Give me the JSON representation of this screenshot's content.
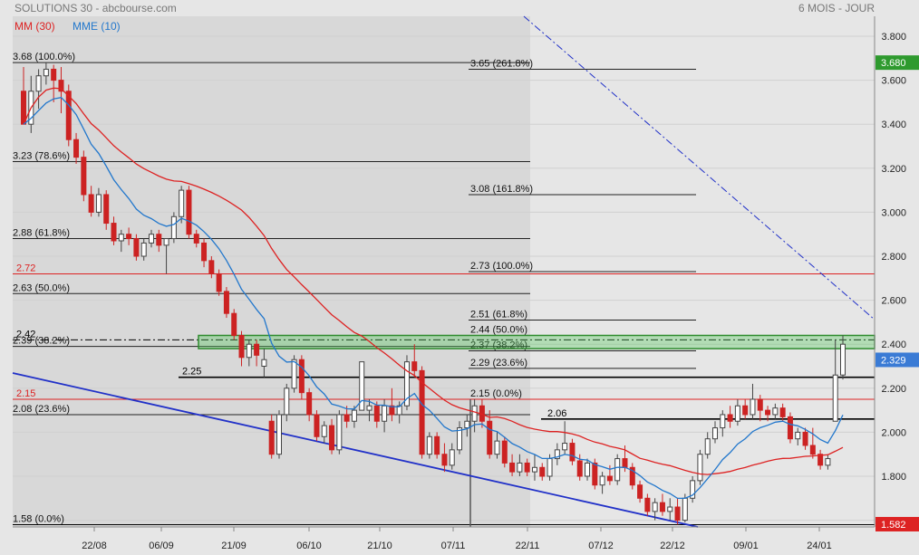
{
  "header": {
    "title": "SOLUTIONS 30 - abcbourse.com",
    "period": "6 MOIS - JOUR"
  },
  "legend": [
    {
      "label": "MM (30)",
      "color": "#dd2222"
    },
    {
      "label": "MME (10)",
      "color": "#2277cc"
    }
  ],
  "colors": {
    "up": "#ffffff",
    "down": "#cc2222",
    "highlight_up": "#2e7d32",
    "mm": "#dd2222",
    "mme": "#2277cc",
    "trend": "#2030c8"
  },
  "chart_data": {
    "type": "candlestick",
    "ylim": [
      1.55,
      3.9
    ],
    "y_ticks": [
      "3.800",
      "3.600",
      "3.400",
      "3.200",
      "3.000",
      "2.800",
      "2.600",
      "2.400",
      "2.200",
      "2.000",
      "1.800",
      "1.600"
    ],
    "x_ticks": [
      "22/08",
      "06/09",
      "21/09",
      "06/10",
      "21/10",
      "07/11",
      "22/11",
      "07/12",
      "22/12",
      "09/01",
      "24/01"
    ],
    "price_badges": [
      {
        "text": "3.680",
        "value": 3.68,
        "color": "#2e9a2e"
      },
      {
        "text": "2.329",
        "value": 2.329,
        "color": "#3a7bd5"
      },
      {
        "text": "1.582",
        "value": 1.582,
        "color": "#dd2222"
      }
    ],
    "fib_retracement": [
      {
        "label": "3.68  (100.0%)",
        "value": 3.68
      },
      {
        "label": "3.23  (78.6%)",
        "value": 3.23
      },
      {
        "label": "2.88  (61.8%)",
        "value": 2.88
      },
      {
        "label": "2.63  (50.0%)",
        "value": 2.63
      },
      {
        "label": "2.39  (38.2%)",
        "value": 2.39
      },
      {
        "label": "2.08  (23.6%)",
        "value": 2.08
      },
      {
        "label": "1.58  (0.0%)",
        "value": 1.58
      }
    ],
    "fib_extension": [
      {
        "label": "3.65  (261.8%)",
        "value": 3.65
      },
      {
        "label": "3.08  (161.8%)",
        "value": 3.08
      },
      {
        "label": "2.73  (100.0%)",
        "value": 2.73
      },
      {
        "label": "2.51  (61.8%)",
        "value": 2.51
      },
      {
        "label": "2.44  (50.0%)",
        "value": 2.44
      },
      {
        "label": "2.37  (38.2%)",
        "value": 2.37
      },
      {
        "label": "2.29  (23.6%)",
        "value": 2.29
      },
      {
        "label": "2.15  (0.0%)",
        "value": 2.15
      }
    ],
    "levels": [
      {
        "label": "2.72",
        "value": 2.72,
        "color": "#dd2222"
      },
      {
        "label": "2.42",
        "value": 2.42,
        "color": "#000000"
      },
      {
        "label": "2.25",
        "value": 2.25,
        "color": "#000000"
      },
      {
        "label": "2.15",
        "value": 2.15,
        "color": "#dd2222"
      },
      {
        "label": "2.06",
        "value": 2.06,
        "color": "#000000"
      },
      {
        "label": "1.58",
        "value": 1.58,
        "color": "#000000"
      }
    ],
    "zone": {
      "low": 2.38,
      "high": 2.44
    },
    "candles": [
      [
        3.55,
        3.66,
        3.4,
        3.4
      ],
      [
        3.4,
        3.62,
        3.36,
        3.55
      ],
      [
        3.55,
        3.65,
        3.47,
        3.62
      ],
      [
        3.62,
        3.68,
        3.58,
        3.65
      ],
      [
        3.65,
        3.67,
        3.5,
        3.6
      ],
      [
        3.6,
        3.66,
        3.45,
        3.55
      ],
      [
        3.55,
        3.58,
        3.3,
        3.33
      ],
      [
        3.33,
        3.36,
        3.22,
        3.25
      ],
      [
        3.25,
        3.28,
        3.05,
        3.08
      ],
      [
        3.08,
        3.12,
        2.98,
        3.0
      ],
      [
        3.0,
        3.11,
        2.98,
        3.08
      ],
      [
        3.08,
        3.1,
        2.92,
        2.95
      ],
      [
        2.95,
        2.98,
        2.85,
        2.87
      ],
      [
        2.87,
        2.92,
        2.82,
        2.9
      ],
      [
        2.9,
        2.93,
        2.85,
        2.88
      ],
      [
        2.88,
        2.9,
        2.78,
        2.8
      ],
      [
        2.8,
        2.88,
        2.78,
        2.86
      ],
      [
        2.86,
        2.92,
        2.84,
        2.9
      ],
      [
        2.9,
        2.92,
        2.82,
        2.85
      ],
      [
        2.85,
        2.88,
        2.72,
        2.88
      ],
      [
        2.88,
        3.0,
        2.86,
        2.98
      ],
      [
        2.98,
        3.12,
        2.95,
        3.1
      ],
      [
        3.1,
        3.12,
        2.88,
        2.9
      ],
      [
        2.9,
        2.92,
        2.84,
        2.86
      ],
      [
        2.86,
        2.88,
        2.75,
        2.78
      ],
      [
        2.78,
        2.8,
        2.7,
        2.72
      ],
      [
        2.72,
        2.74,
        2.62,
        2.64
      ],
      [
        2.64,
        2.66,
        2.52,
        2.54
      ],
      [
        2.54,
        2.56,
        2.42,
        2.44
      ],
      [
        2.44,
        2.46,
        2.3,
        2.34
      ],
      [
        2.34,
        2.42,
        2.3,
        2.4
      ],
      [
        2.4,
        2.42,
        2.3,
        2.35
      ],
      [
        2.3,
        2.38,
        2.25,
        2.33
      ],
      [
        2.05,
        2.08,
        1.88,
        1.9
      ],
      [
        1.9,
        2.1,
        1.88,
        2.08
      ],
      [
        2.08,
        2.22,
        2.05,
        2.2
      ],
      [
        2.2,
        2.35,
        2.18,
        2.33
      ],
      [
        2.33,
        2.35,
        2.15,
        2.18
      ],
      [
        2.18,
        2.2,
        2.05,
        2.08
      ],
      [
        2.08,
        2.1,
        1.96,
        1.98
      ],
      [
        1.98,
        2.05,
        1.95,
        2.03
      ],
      [
        2.03,
        2.06,
        1.9,
        1.92
      ],
      [
        1.92,
        2.1,
        1.9,
        2.08
      ],
      [
        2.08,
        2.12,
        2.02,
        2.05
      ],
      [
        2.05,
        2.12,
        2.02,
        2.1
      ],
      [
        2.1,
        2.32,
        2.1,
        2.32
      ],
      [
        2.1,
        2.15,
        2.05,
        2.12
      ],
      [
        2.12,
        2.14,
        2.02,
        2.05
      ],
      [
        2.05,
        2.15,
        2.0,
        2.12
      ],
      [
        2.12,
        2.2,
        2.05,
        2.08
      ],
      [
        2.08,
        2.14,
        2.04,
        2.12
      ],
      [
        2.12,
        2.35,
        2.1,
        2.32
      ],
      [
        2.32,
        2.4,
        2.25,
        2.28
      ],
      [
        2.28,
        2.3,
        1.88,
        1.9
      ],
      [
        1.9,
        2.0,
        1.88,
        1.98
      ],
      [
        1.98,
        2.0,
        1.88,
        1.9
      ],
      [
        1.9,
        1.95,
        1.82,
        1.85
      ],
      [
        1.85,
        1.95,
        1.83,
        1.92
      ],
      [
        1.92,
        2.05,
        1.9,
        2.02
      ],
      [
        2.02,
        2.08,
        1.98,
        2.05
      ],
      [
        2.05,
        2.15,
        2.0,
        2.12
      ],
      [
        2.12,
        2.15,
        2.02,
        2.05
      ],
      [
        2.05,
        2.1,
        1.88,
        1.9
      ],
      [
        1.9,
        2.0,
        1.88,
        1.96
      ],
      [
        1.96,
        1.98,
        1.84,
        1.86
      ],
      [
        1.86,
        1.9,
        1.8,
        1.82
      ],
      [
        1.82,
        1.9,
        1.8,
        1.86
      ],
      [
        1.86,
        1.88,
        1.8,
        1.82
      ],
      [
        1.82,
        1.9,
        1.78,
        1.84
      ],
      [
        1.84,
        1.86,
        1.78,
        1.8
      ],
      [
        1.8,
        1.9,
        1.78,
        1.88
      ],
      [
        1.88,
        1.95,
        1.85,
        1.92
      ],
      [
        1.92,
        2.05,
        1.9,
        1.95
      ],
      [
        1.95,
        1.97,
        1.85,
        1.87
      ],
      [
        1.87,
        1.9,
        1.78,
        1.8
      ],
      [
        1.8,
        1.88,
        1.78,
        1.86
      ],
      [
        1.86,
        1.88,
        1.74,
        1.76
      ],
      [
        1.76,
        1.82,
        1.72,
        1.8
      ],
      [
        1.8,
        1.85,
        1.76,
        1.78
      ],
      [
        1.78,
        1.9,
        1.76,
        1.88
      ],
      [
        1.88,
        1.94,
        1.82,
        1.84
      ],
      [
        1.84,
        1.86,
        1.74,
        1.76
      ],
      [
        1.76,
        1.78,
        1.68,
        1.7
      ],
      [
        1.7,
        1.72,
        1.62,
        1.64
      ],
      [
        1.64,
        1.7,
        1.6,
        1.68
      ],
      [
        1.68,
        1.72,
        1.62,
        1.64
      ],
      [
        1.64,
        1.7,
        1.6,
        1.66
      ],
      [
        1.66,
        1.7,
        1.58,
        1.6
      ],
      [
        1.6,
        1.72,
        1.59,
        1.7
      ],
      [
        1.7,
        1.8,
        1.68,
        1.78
      ],
      [
        1.78,
        1.92,
        1.76,
        1.9
      ],
      [
        1.9,
        2.0,
        1.88,
        1.97
      ],
      [
        1.97,
        2.05,
        1.95,
        2.02
      ],
      [
        2.02,
        2.1,
        1.98,
        2.08
      ],
      [
        2.08,
        2.12,
        2.02,
        2.05
      ],
      [
        2.05,
        2.15,
        2.03,
        2.12
      ],
      [
        2.12,
        2.15,
        2.06,
        2.08
      ],
      [
        2.08,
        2.22,
        2.06,
        2.15
      ],
      [
        2.15,
        2.17,
        2.05,
        2.1
      ],
      [
        2.1,
        2.12,
        2.05,
        2.08
      ],
      [
        2.08,
        2.13,
        2.06,
        2.11
      ],
      [
        2.11,
        2.13,
        2.05,
        2.07
      ],
      [
        2.07,
        2.09,
        1.95,
        1.97
      ],
      [
        1.97,
        2.02,
        1.94,
        2.0
      ],
      [
        2.0,
        2.02,
        1.92,
        1.94
      ],
      [
        1.94,
        2.02,
        1.88,
        1.9
      ],
      [
        1.9,
        1.92,
        1.83,
        1.85
      ],
      [
        1.85,
        1.9,
        1.83,
        1.88
      ],
      [
        2.05,
        2.42,
        2.05,
        2.26
      ],
      [
        2.26,
        2.44,
        2.24,
        2.4
      ]
    ]
  }
}
